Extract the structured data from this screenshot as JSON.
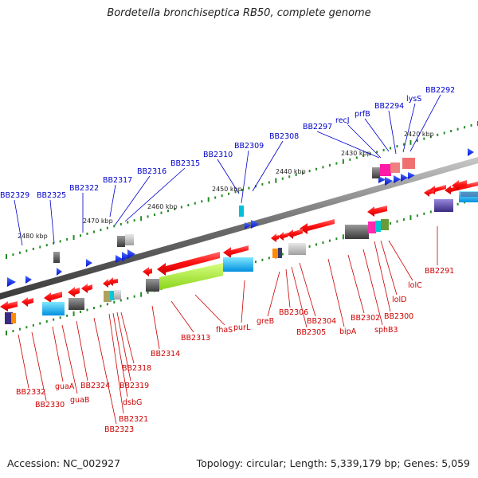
{
  "title": "Bordetella bronchiseptica RB50, complete genome",
  "footer": {
    "accession": "Accession: NC_002927",
    "summary": "Topology: circular; Length: 5,339,179 bp; Genes: 5,059"
  },
  "scale_labels": [
    "2420 kbp",
    "2430 kbp",
    "2440 kbp",
    "2450 kbp",
    "2460 kbp",
    "2470 kbp",
    "2480 kbp"
  ],
  "top_labels": [
    "BB2292",
    "lysS",
    "BB2294",
    "prfB",
    "recJ",
    "BB2297",
    "BB2308",
    "BB2309",
    "BB2310",
    "BB2315",
    "BB2316",
    "BB2317",
    "BB2322",
    "BB2325",
    "BB2329"
  ],
  "bottom_labels": [
    "BB2291",
    "lolC",
    "lolD",
    "BB2300",
    "sphB3",
    "BB2302",
    "bipA",
    "BB2304",
    "BB2305",
    "BB2306",
    "greB",
    "purL",
    "fhaS",
    "BB2313",
    "BB2314",
    "BB2318",
    "BB2319",
    "dsbG",
    "BB2321",
    "BB2323",
    "BB2324",
    "guaB",
    "guaA",
    "BB2330",
    "BB2332"
  ],
  "colors": {
    "top_label": "#0000cc",
    "bottom_label": "#cc0000",
    "forward_gene": "#1a3cff",
    "reverse_gene": "#ff1a1a",
    "backbone": "#6a6a6a",
    "tick": "#228b22"
  }
}
